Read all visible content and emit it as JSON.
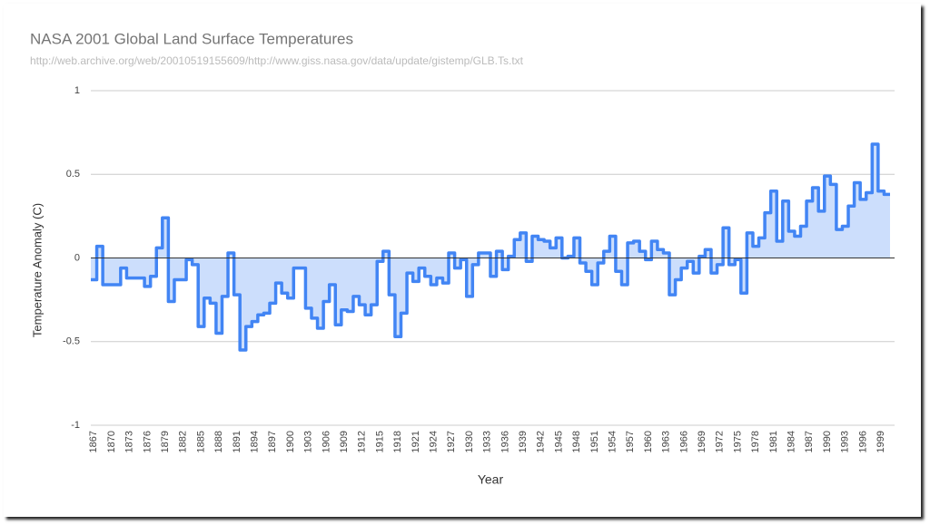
{
  "chart_data": {
    "type": "step-area",
    "title": "NASA 2001 Global Land Surface Temperatures",
    "subtitle": "http://web.archive.org/web/20010519155609/http://www.giss.nasa.gov/data/update/gistemp/GLB.Ts.txt",
    "x_label": "Year",
    "y_label": "Temperature Anomaly (C)",
    "x": [
      1867,
      1868,
      1869,
      1870,
      1871,
      1872,
      1873,
      1874,
      1875,
      1876,
      1877,
      1878,
      1879,
      1880,
      1881,
      1882,
      1883,
      1884,
      1885,
      1886,
      1887,
      1888,
      1889,
      1890,
      1891,
      1892,
      1893,
      1894,
      1895,
      1896,
      1897,
      1898,
      1899,
      1900,
      1901,
      1902,
      1903,
      1904,
      1905,
      1906,
      1907,
      1908,
      1909,
      1910,
      1911,
      1912,
      1913,
      1914,
      1915,
      1916,
      1917,
      1918,
      1919,
      1920,
      1921,
      1922,
      1923,
      1924,
      1925,
      1926,
      1927,
      1928,
      1929,
      1930,
      1931,
      1932,
      1933,
      1934,
      1935,
      1936,
      1937,
      1938,
      1939,
      1940,
      1941,
      1942,
      1943,
      1944,
      1945,
      1946,
      1947,
      1948,
      1949,
      1950,
      1951,
      1952,
      1953,
      1954,
      1955,
      1956,
      1957,
      1958,
      1959,
      1960,
      1961,
      1962,
      1963,
      1964,
      1965,
      1966,
      1967,
      1968,
      1969,
      1970,
      1971,
      1972,
      1973,
      1974,
      1975,
      1976,
      1977,
      1978,
      1979,
      1980,
      1981,
      1982,
      1983,
      1984,
      1985,
      1986,
      1987,
      1988,
      1989,
      1990,
      1991,
      1992,
      1993,
      1994,
      1995,
      1996,
      1997,
      1998,
      1999,
      2000
    ],
    "series": [
      {
        "name": "Temperature Anomaly (C)",
        "color": "#4285f4",
        "fill": "#c6dafc",
        "values": [
          -0.13,
          0.07,
          -0.16,
          -0.16,
          -0.16,
          -0.06,
          -0.12,
          -0.12,
          -0.12,
          -0.17,
          -0.11,
          0.06,
          0.24,
          -0.26,
          -0.13,
          -0.13,
          -0.01,
          -0.04,
          -0.41,
          -0.24,
          -0.27,
          -0.45,
          -0.23,
          0.03,
          -0.22,
          -0.55,
          -0.41,
          -0.38,
          -0.34,
          -0.33,
          -0.27,
          -0.15,
          -0.21,
          -0.24,
          -0.06,
          -0.06,
          -0.3,
          -0.36,
          -0.42,
          -0.26,
          -0.16,
          -0.4,
          -0.31,
          -0.32,
          -0.23,
          -0.28,
          -0.34,
          -0.28,
          -0.02,
          0.04,
          -0.22,
          -0.47,
          -0.33,
          -0.09,
          -0.14,
          -0.06,
          -0.11,
          -0.16,
          -0.12,
          -0.15,
          0.03,
          -0.06,
          -0.01,
          -0.23,
          -0.04,
          0.03,
          0.03,
          -0.11,
          0.04,
          -0.07,
          0.01,
          0.11,
          0.15,
          -0.02,
          0.13,
          0.11,
          0.1,
          0.06,
          0.12,
          0.0,
          0.01,
          0.12,
          -0.03,
          -0.08,
          -0.16,
          -0.03,
          0.04,
          0.13,
          -0.08,
          -0.16,
          0.09,
          0.1,
          0.04,
          -0.01,
          0.1,
          0.05,
          0.03,
          -0.22,
          -0.13,
          -0.06,
          -0.02,
          -0.09,
          0.01,
          0.05,
          -0.09,
          -0.04,
          0.18,
          -0.04,
          -0.01,
          -0.21,
          0.15,
          0.07,
          0.12,
          0.27,
          0.4,
          0.1,
          0.34,
          0.16,
          0.13,
          0.19,
          0.34,
          0.42,
          0.28,
          0.49,
          0.44,
          0.17,
          0.19,
          0.31,
          0.45,
          0.35,
          0.39,
          0.68,
          0.4,
          0.38
        ]
      }
    ],
    "xlim": [
      1867,
      2001
    ],
    "xticks": [
      1867,
      1870,
      1873,
      1876,
      1879,
      1882,
      1885,
      1888,
      1891,
      1894,
      1897,
      1900,
      1903,
      1906,
      1909,
      1912,
      1915,
      1918,
      1921,
      1924,
      1927,
      1930,
      1933,
      1936,
      1939,
      1942,
      1945,
      1948,
      1951,
      1954,
      1957,
      1960,
      1963,
      1966,
      1969,
      1972,
      1975,
      1978,
      1981,
      1984,
      1987,
      1990,
      1993,
      1996,
      1999
    ],
    "ylim": [
      -1,
      1
    ],
    "yticks": [
      -1,
      -0.5,
      0,
      0.5,
      1
    ],
    "grid": true
  }
}
